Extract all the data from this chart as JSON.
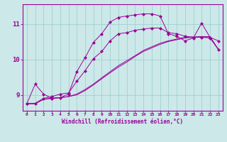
{
  "background_color": "#cce8e8",
  "line_color": "#990099",
  "grid_color": "#99cccc",
  "xlim": [
    -0.5,
    23.5
  ],
  "ylim": [
    8.55,
    11.55
  ],
  "yticks": [
    9,
    10,
    11
  ],
  "xticks": [
    0,
    1,
    2,
    3,
    4,
    5,
    6,
    7,
    8,
    9,
    10,
    11,
    12,
    13,
    14,
    15,
    16,
    17,
    18,
    19,
    20,
    21,
    22,
    23
  ],
  "xlabel": "Windchill (Refroidissement éolien,°C)",
  "series_smooth1": [
    8.75,
    8.75,
    8.88,
    8.9,
    8.92,
    8.95,
    9.0,
    9.12,
    9.28,
    9.45,
    9.62,
    9.78,
    9.92,
    10.08,
    10.22,
    10.32,
    10.42,
    10.5,
    10.55,
    10.6,
    10.62,
    10.63,
    10.63,
    10.28
  ],
  "series_smooth2": [
    8.75,
    8.75,
    8.87,
    8.9,
    8.92,
    8.95,
    9.02,
    9.15,
    9.3,
    9.48,
    9.65,
    9.82,
    9.96,
    10.1,
    10.25,
    10.35,
    10.45,
    10.52,
    10.57,
    10.62,
    10.63,
    10.64,
    10.64,
    10.28
  ],
  "series_marked1": [
    8.75,
    8.76,
    8.9,
    8.95,
    9.02,
    9.05,
    9.38,
    9.68,
    10.02,
    10.22,
    10.52,
    10.72,
    10.75,
    10.82,
    10.85,
    10.88,
    10.88,
    10.75,
    10.72,
    10.65,
    10.62,
    10.62,
    10.6,
    10.28
  ],
  "series_marked2": [
    8.75,
    9.3,
    9.02,
    8.9,
    8.92,
    9.02,
    9.65,
    10.05,
    10.48,
    10.72,
    11.05,
    11.18,
    11.22,
    11.25,
    11.28,
    11.28,
    11.22,
    10.72,
    10.65,
    10.52,
    10.6,
    11.02,
    10.62,
    10.52
  ]
}
